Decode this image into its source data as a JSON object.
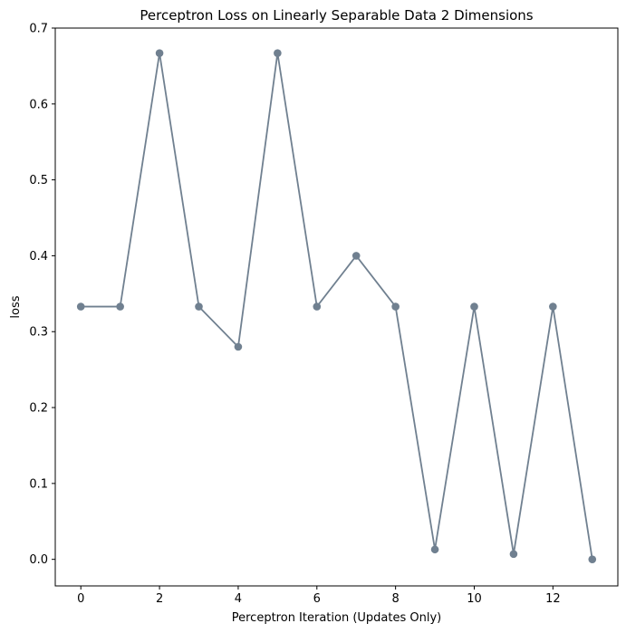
{
  "chart_data": {
    "type": "line",
    "title": "Perceptron Loss on Linearly Separable Data 2 Dimensions",
    "xlabel": "Perceptron Iteration (Updates Only)",
    "ylabel": "loss",
    "xlim": [
      -0.65,
      13.65
    ],
    "ylim": [
      -0.035,
      0.7
    ],
    "x_ticks": [
      0,
      2,
      4,
      6,
      8,
      10,
      12
    ],
    "y_ticks": [
      0.0,
      0.1,
      0.2,
      0.3,
      0.4,
      0.5,
      0.6,
      0.7
    ],
    "x_tick_labels": [
      "0",
      "2",
      "4",
      "6",
      "8",
      "10",
      "12"
    ],
    "y_tick_labels": [
      "0.0",
      "0.1",
      "0.2",
      "0.3",
      "0.4",
      "0.5",
      "0.6",
      "0.7"
    ],
    "grid": false,
    "legend": "none",
    "line_color": "#708090",
    "series": [
      {
        "x": [
          0,
          1,
          2,
          3,
          4,
          5,
          6,
          7,
          8,
          9,
          10,
          11,
          12,
          13
        ],
        "values": [
          0.333,
          0.333,
          0.667,
          0.333,
          0.28,
          0.667,
          0.333,
          0.4,
          0.333,
          0.013,
          0.333,
          0.007,
          0.333,
          0.0
        ]
      }
    ]
  }
}
